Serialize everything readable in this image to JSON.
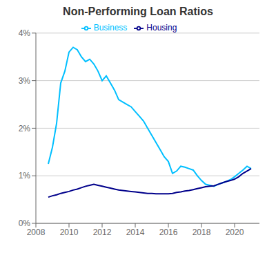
{
  "chart_data": {
    "type": "line",
    "title": "Non-Performing Loan Ratios",
    "x": [
      2008.75,
      2009.0,
      2009.25,
      2009.5,
      2009.75,
      2010.0,
      2010.25,
      2010.5,
      2010.75,
      2011.0,
      2011.25,
      2011.5,
      2011.75,
      2012.0,
      2012.25,
      2012.5,
      2012.75,
      2013.0,
      2013.25,
      2013.5,
      2013.75,
      2014.0,
      2014.25,
      2014.5,
      2014.75,
      2015.0,
      2015.25,
      2015.5,
      2015.75,
      2016.0,
      2016.25,
      2016.5,
      2016.75,
      2017.0,
      2017.25,
      2017.5,
      2017.75,
      2018.0,
      2018.25,
      2018.5,
      2018.75,
      2019.0,
      2019.25,
      2019.5,
      2019.75,
      2020.0,
      2020.25,
      2020.5,
      2020.75,
      2021.0
    ],
    "series": [
      {
        "name": "Business",
        "color": "#00BFFF",
        "values": [
          0.0125,
          0.016,
          0.021,
          0.0295,
          0.032,
          0.036,
          0.037,
          0.0365,
          0.035,
          0.034,
          0.0345,
          0.0335,
          0.032,
          0.03,
          0.031,
          0.0295,
          0.028,
          0.026,
          0.0255,
          0.025,
          0.0245,
          0.0235,
          0.0225,
          0.0215,
          0.02,
          0.0185,
          0.017,
          0.0155,
          0.014,
          0.013,
          0.0105,
          0.011,
          0.012,
          0.0118,
          0.0115,
          0.0112,
          0.01,
          0.009,
          0.0082,
          0.008,
          0.0078,
          0.0082,
          0.0085,
          0.0088,
          0.0092,
          0.0098,
          0.0105,
          0.0112,
          0.012,
          0.0115
        ]
      },
      {
        "name": "Housing",
        "color": "#00008B",
        "values": [
          0.0055,
          0.0058,
          0.006,
          0.0063,
          0.0065,
          0.0067,
          0.007,
          0.0072,
          0.0075,
          0.0078,
          0.008,
          0.0082,
          0.008,
          0.0078,
          0.0076,
          0.0074,
          0.0072,
          0.007,
          0.0069,
          0.0068,
          0.0067,
          0.0066,
          0.0065,
          0.0064,
          0.0063,
          0.0063,
          0.0062,
          0.0062,
          0.0062,
          0.0062,
          0.0063,
          0.0065,
          0.0066,
          0.0068,
          0.0069,
          0.0071,
          0.0073,
          0.0075,
          0.0077,
          0.0078,
          0.0079,
          0.0082,
          0.0085,
          0.0088,
          0.009,
          0.0093,
          0.0098,
          0.0105,
          0.011,
          0.0115
        ]
      }
    ],
    "xlim": [
      2008,
      2021.5
    ],
    "xticks": [
      2008,
      2010,
      2012,
      2014,
      2016,
      2018,
      2020
    ],
    "ylim": [
      0,
      0.04
    ],
    "yticks": [
      {
        "value": 0,
        "label": "0%"
      },
      {
        "value": 0.01,
        "label": "1%"
      },
      {
        "value": 0.02,
        "label": "2%"
      },
      {
        "value": 0.03,
        "label": "3%"
      },
      {
        "value": 0.04,
        "label": "4%"
      }
    ],
    "grid": true,
    "legend": "top"
  }
}
